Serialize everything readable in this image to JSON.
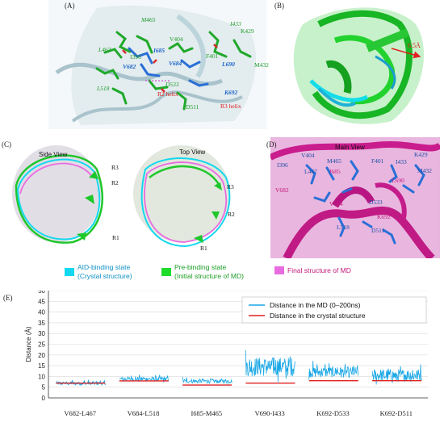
{
  "panels": {
    "a": {
      "label": "(A)",
      "residues": [
        {
          "text": "M465",
          "cls": "gi"
        },
        {
          "text": "I433",
          "cls": "gi"
        },
        {
          "text": "K429",
          "cls": "g"
        },
        {
          "text": "V404",
          "cls": "g"
        },
        {
          "text": "L467",
          "cls": "gi"
        },
        {
          "text": "I396",
          "cls": "g"
        },
        {
          "text": "I685",
          "cls": "b"
        },
        {
          "text": "V684",
          "cls": "b"
        },
        {
          "text": "V682",
          "cls": "b"
        },
        {
          "text": "F401",
          "cls": "g"
        },
        {
          "text": "L690",
          "cls": "b"
        },
        {
          "text": "M432",
          "cls": "g"
        },
        {
          "text": "L518",
          "cls": "gi"
        },
        {
          "text": "D533",
          "cls": "gi"
        },
        {
          "text": "R2 helix",
          "cls": "r"
        },
        {
          "text": "K692",
          "cls": "b"
        },
        {
          "text": "D511",
          "cls": "g"
        },
        {
          "text": "R3 helix",
          "cls": "r"
        }
      ]
    },
    "b": {
      "label": "(B)",
      "distance_label": "6.5Å"
    },
    "c": {
      "label": "(C)",
      "side_view": "Side View",
      "top_view": "Top View",
      "regions": [
        "R3",
        "R2",
        "R1",
        "R3",
        "R2",
        "R1"
      ]
    },
    "d": {
      "label": "(D)",
      "title": "Main View",
      "residues": [
        {
          "text": "V404",
          "cls": "w"
        },
        {
          "text": "M465",
          "cls": "w"
        },
        {
          "text": "K429",
          "cls": "w"
        },
        {
          "text": "I396",
          "cls": "w"
        },
        {
          "text": "L467",
          "cls": "w"
        },
        {
          "text": "I685",
          "cls": "m"
        },
        {
          "text": "F401",
          "cls": "w"
        },
        {
          "text": "I433",
          "cls": "w"
        },
        {
          "text": "M432",
          "cls": "w"
        },
        {
          "text": "V682",
          "cls": "m"
        },
        {
          "text": "L690",
          "cls": "m"
        },
        {
          "text": "D533",
          "cls": "w"
        },
        {
          "text": "V684",
          "cls": "m"
        },
        {
          "text": "K692",
          "cls": "m"
        },
        {
          "text": "L518",
          "cls": "w"
        },
        {
          "text": "D511",
          "cls": "w"
        }
      ]
    }
  },
  "legend_structures": [
    {
      "text": "AID-binding state\n(Crystal structure)",
      "line1": "AID-binding state",
      "line2": "(Crystal structure)",
      "color": "#14d8ee"
    },
    {
      "text": "Pre-binding state\n(Initial structure of MD)",
      "line1": "Pre-binding state",
      "line2": "(Initial structure of MD)",
      "color": "#1fdc2b"
    },
    {
      "text": "Final structure of MD",
      "line1": "Final structure of MD",
      "line2": "",
      "color": "#e86be0"
    }
  ],
  "colors": {
    "md": "#1aa7e6",
    "crystal": "#e02020",
    "grid": "#d9d9d9",
    "axis": "#333333"
  },
  "chart_data": {
    "type": "line",
    "panel_label": "(E)",
    "ylabel": "Distance (Å)",
    "ylim": [
      0,
      50
    ],
    "yticks": [
      0,
      5,
      10,
      15,
      20,
      25,
      30,
      35,
      40,
      45,
      50
    ],
    "grid": true,
    "legend_position": "top-right",
    "categories": [
      "V682-L467",
      "V684-L518",
      "I685-M465",
      "V690-I433",
      "K692-D533",
      "K692-D511"
    ],
    "series": [
      {
        "name": "Distance in the MD (0–200ns)",
        "type": "trace",
        "segments": [
          {
            "category": "V682-L467",
            "mean": 6.8,
            "min": 5.6,
            "max": 8.6
          },
          {
            "category": "V684-L518",
            "mean": 8.8,
            "min": 7.0,
            "max": 10.8
          },
          {
            "category": "I685-M465",
            "mean": 7.8,
            "min": 6.5,
            "max": 10.2
          },
          {
            "category": "V690-I433",
            "mean": 14.5,
            "min": 7.3,
            "max": 23.5
          },
          {
            "category": "K692-D533",
            "mean": 12.0,
            "min": 8.5,
            "max": 17.5
          },
          {
            "category": "K692-D511",
            "mean": 10.5,
            "min": 5.5,
            "max": 16.5
          }
        ]
      },
      {
        "name": "Distance in the crystal structure",
        "type": "constant",
        "values": [
          6.9,
          7.9,
          6.0,
          6.9,
          8.0,
          8.0
        ]
      }
    ]
  }
}
